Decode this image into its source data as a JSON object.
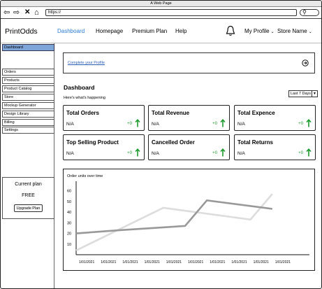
{
  "window": {
    "title": "A Web Page"
  },
  "browser": {
    "url": "https://"
  },
  "header": {
    "brand": "PrintOdds",
    "nav": [
      "Dashboard",
      "Homepage",
      "Premium Plan",
      "Help"
    ],
    "profile_label": "My Profile",
    "store_label": "Store Name"
  },
  "sidebar": {
    "items": [
      "Dashboard",
      "Orders",
      "Products",
      "Product Catalog",
      "Store",
      "Mockup Generator",
      "Design Library",
      "Billing",
      "Settings"
    ],
    "plan_title": "Current plan",
    "plan_value": "FREE",
    "upgrade_label": "Upgrade Plan"
  },
  "banner": {
    "link": "Complete your Profile"
  },
  "dashboard": {
    "title": "Dashboard",
    "subtitle": "Here's what's happening",
    "range": "Last 7 Days"
  },
  "cards": [
    {
      "title": "Total Orders",
      "value": "N/A",
      "delta": "+0"
    },
    {
      "title": "Total Revenue",
      "value": "N/A",
      "delta": "+0"
    },
    {
      "title": "Total Expence",
      "value": "N/A",
      "delta": "+0"
    },
    {
      "title": "Top Selling Product",
      "value": "N/A",
      "delta": "+0"
    },
    {
      "title": "Cancelled Order",
      "value": "N/A",
      "delta": "+0"
    },
    {
      "title": "Total Returns",
      "value": "N/A",
      "delta": "+0"
    }
  ],
  "colors": {
    "accent": "#2a7bd6",
    "active_sidebar": "#7ea6d8",
    "positive": "#1e9a2e"
  },
  "chart_data": {
    "type": "line",
    "title": "Order units over time",
    "categories": [
      "1/01/2021",
      "1/01/2021",
      "1/01/2021",
      "1/01/2021",
      "1/01/2021",
      "1/01/2021",
      "1/01/2021",
      "1/01/2021",
      "1/01/2021",
      "1/01/2021"
    ],
    "series": [
      {
        "x": [
          0,
          2,
          5,
          6,
          9
        ],
        "values": [
          20,
          23,
          27,
          51,
          43
        ],
        "color": "#999999"
      },
      {
        "x": [
          0,
          4,
          8,
          9
        ],
        "values": [
          4,
          44,
          33,
          57
        ],
        "color": "#dddddd"
      }
    ],
    "yticks": [
      10,
      20,
      30,
      40,
      50,
      60
    ],
    "ylim": [
      0,
      65
    ],
    "grid": false
  }
}
